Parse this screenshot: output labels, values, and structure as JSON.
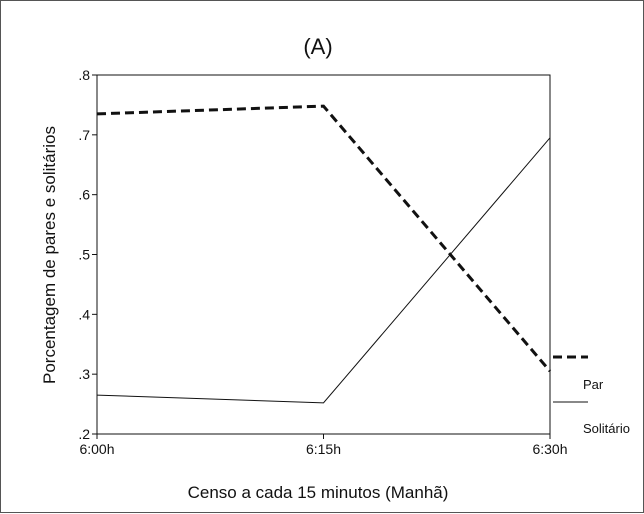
{
  "chart_data": {
    "type": "line",
    "title": "(A)",
    "xlabel": "Censo a cada 15 minutos (Manhã)",
    "ylabel": "Porcentagem de pares e solitários",
    "categories": [
      "6:00h",
      "6:15h",
      "6:30h"
    ],
    "ylim": [
      0.2,
      0.8
    ],
    "yticks": [
      ".2",
      ".3",
      ".4",
      ".5",
      ".6",
      ".7",
      ".8"
    ],
    "grid": false,
    "legend_position": "bottom-right",
    "series": [
      {
        "name": "Par",
        "values": [
          0.735,
          0.748,
          0.305
        ],
        "style": "dashed",
        "color": "#111111"
      },
      {
        "name": "Solitário",
        "values": [
          0.265,
          0.252,
          0.695
        ],
        "style": "solid",
        "color": "#111111"
      }
    ]
  }
}
